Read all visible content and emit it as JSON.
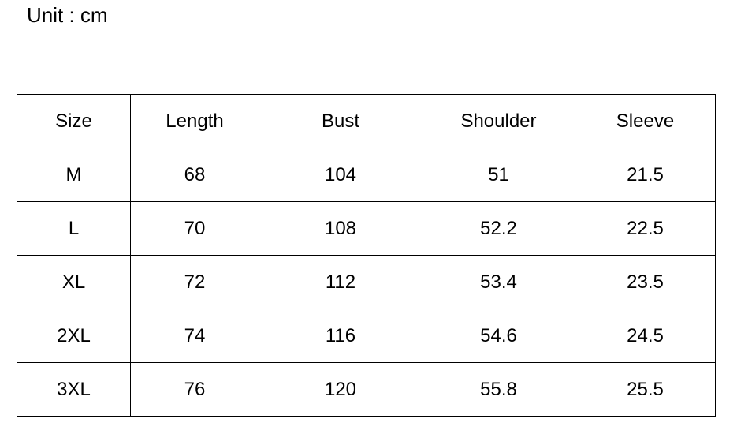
{
  "unit_label": "Unit : cm",
  "table": {
    "headers": [
      "Size",
      "Length",
      "Bust",
      "Shoulder",
      "Sleeve"
    ],
    "rows": [
      [
        "M",
        "68",
        "104",
        "51",
        "21.5"
      ],
      [
        "L",
        "70",
        "108",
        "52.2",
        "22.5"
      ],
      [
        "XL",
        "72",
        "112",
        "53.4",
        "23.5"
      ],
      [
        "2XL",
        "74",
        "116",
        "54.6",
        "24.5"
      ],
      [
        "3XL",
        "76",
        "120",
        "55.8",
        "25.5"
      ]
    ]
  }
}
